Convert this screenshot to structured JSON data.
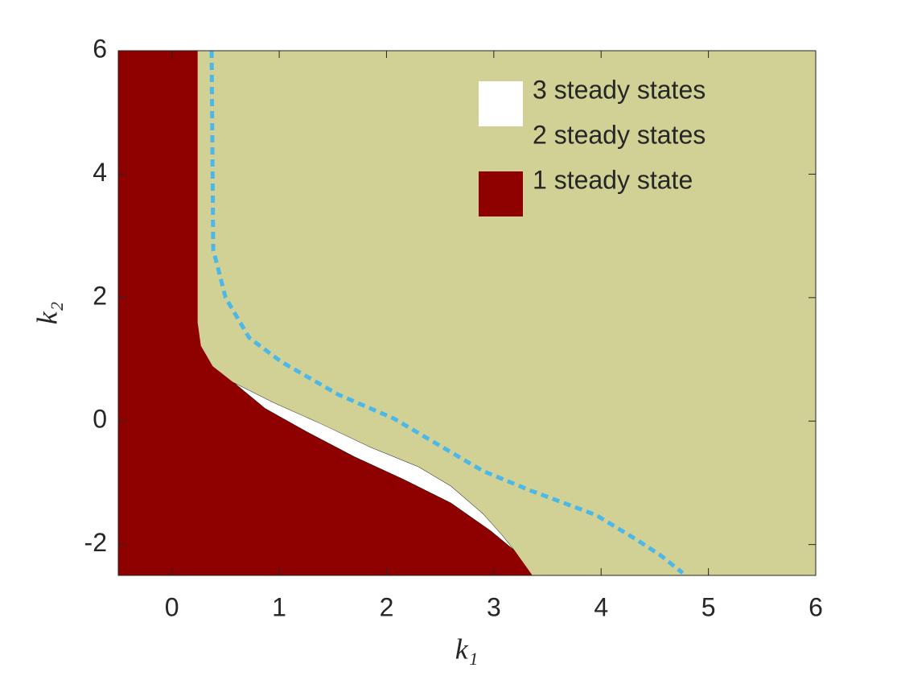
{
  "chart_data": {
    "type": "region",
    "xlabel": "k₁",
    "ylabel": "k₂",
    "xlim": [
      -0.5,
      6
    ],
    "ylim": [
      -2.5,
      6
    ],
    "xticks": [
      0,
      1,
      2,
      3,
      4,
      5,
      6
    ],
    "yticks": [
      -2,
      0,
      2,
      4,
      6
    ],
    "series": [
      {
        "name": "3 steady states",
        "color": "#ffffff",
        "x": [
          0.57,
          0.95,
          1.4,
          1.85,
          2.3,
          2.6,
          2.9,
          3.08,
          3.2,
          2.97,
          2.6,
          2.15,
          1.7,
          1.25,
          0.87
        ],
        "values": [
          0.63,
          0.3,
          -0.05,
          -0.42,
          -0.74,
          -1.05,
          -1.5,
          -1.85,
          -2.11,
          -1.78,
          -1.33,
          -0.94,
          -0.58,
          -0.17,
          0.2
        ]
      },
      {
        "name": "2 steady states",
        "color": "#d1d095",
        "x": [
          0.24,
          6,
          6,
          3.36,
          3.2,
          3.08,
          2.9,
          2.6,
          2.3,
          1.85,
          1.4,
          0.95,
          0.57,
          0.38,
          0.27,
          0.24
        ],
        "values": [
          6,
          6,
          -2.5,
          -2.5,
          -2.11,
          -1.85,
          -1.5,
          -1.05,
          -0.74,
          -0.42,
          -0.05,
          0.3,
          0.63,
          0.89,
          1.22,
          1.6
        ]
      },
      {
        "name": "1 steady state",
        "color": "#8f0000",
        "x": [
          -0.5,
          0.24,
          0.24,
          0.27,
          0.38,
          0.57,
          0.87,
          1.25,
          1.7,
          2.15,
          2.6,
          2.97,
          3.2,
          3.36,
          -0.5
        ],
        "values": [
          6,
          6,
          1.6,
          1.22,
          0.89,
          0.63,
          0.2,
          -0.17,
          -0.58,
          -0.94,
          -1.33,
          -1.78,
          -2.11,
          -2.5,
          -2.5
        ]
      },
      {
        "color": "#4cb8e8",
        "line": "dashed",
        "x": [
          0.37,
          0.385,
          0.5,
          0.72,
          1.02,
          1.55,
          2.07,
          2.45,
          2.9,
          3.35,
          3.95,
          4.32,
          4.55,
          4.76
        ],
        "values": [
          6,
          2.78,
          2.0,
          1.35,
          0.96,
          0.43,
          0.04,
          -0.35,
          -0.81,
          -1.13,
          -1.52,
          -1.91,
          -2.17,
          -2.46
        ]
      }
    ]
  }
}
